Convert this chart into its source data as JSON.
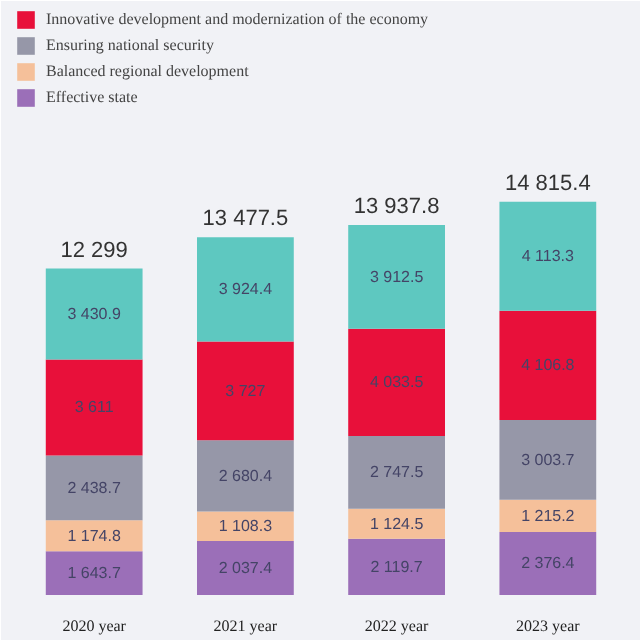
{
  "chart_data": {
    "type": "bar",
    "stacked": true,
    "categories": [
      "2020 year",
      "2021 year",
      "2022 year",
      "2023 year"
    ],
    "series": [
      {
        "name": "Effective state",
        "color": "#9b6fb8",
        "values": [
          1643.7,
          2037.4,
          2119.7,
          2376.4
        ],
        "value_labels": [
          "1 643.7",
          "2 037.4",
          "2 119.7",
          "2 376.4"
        ]
      },
      {
        "name": "Balanced regional development",
        "color": "#f5c09a",
        "values": [
          1174.8,
          1108.3,
          1124.5,
          1215.2
        ],
        "value_labels": [
          "1 174.8",
          "1 108.3",
          "1 124.5",
          "1 215.2"
        ]
      },
      {
        "name": "Ensuring national security",
        "color": "#9697a8",
        "values": [
          2438.7,
          2680.4,
          2747.5,
          3003.7
        ],
        "value_labels": [
          "2 438.7",
          "2 680.4",
          "2 747.5",
          "3 003.7"
        ]
      },
      {
        "name": "Innovative development and modernization of the economy",
        "color": "#e8103a",
        "values": [
          3611,
          3727,
          4033.5,
          4106.8
        ],
        "value_labels": [
          "3 611",
          "3 727",
          "4 033.5",
          "4 106.8"
        ]
      },
      {
        "color": "#5ec8c0",
        "values": [
          3430.9,
          3924.4,
          3912.5,
          4113.3
        ],
        "value_labels": [
          "3 430.9",
          "3 924.4",
          "3 912.5",
          "4 113.3"
        ]
      }
    ],
    "totals": [
      "12 299",
      "13 477.5",
      "13 937.8",
      "14 815.4"
    ],
    "legend": "top",
    "grid": false
  }
}
